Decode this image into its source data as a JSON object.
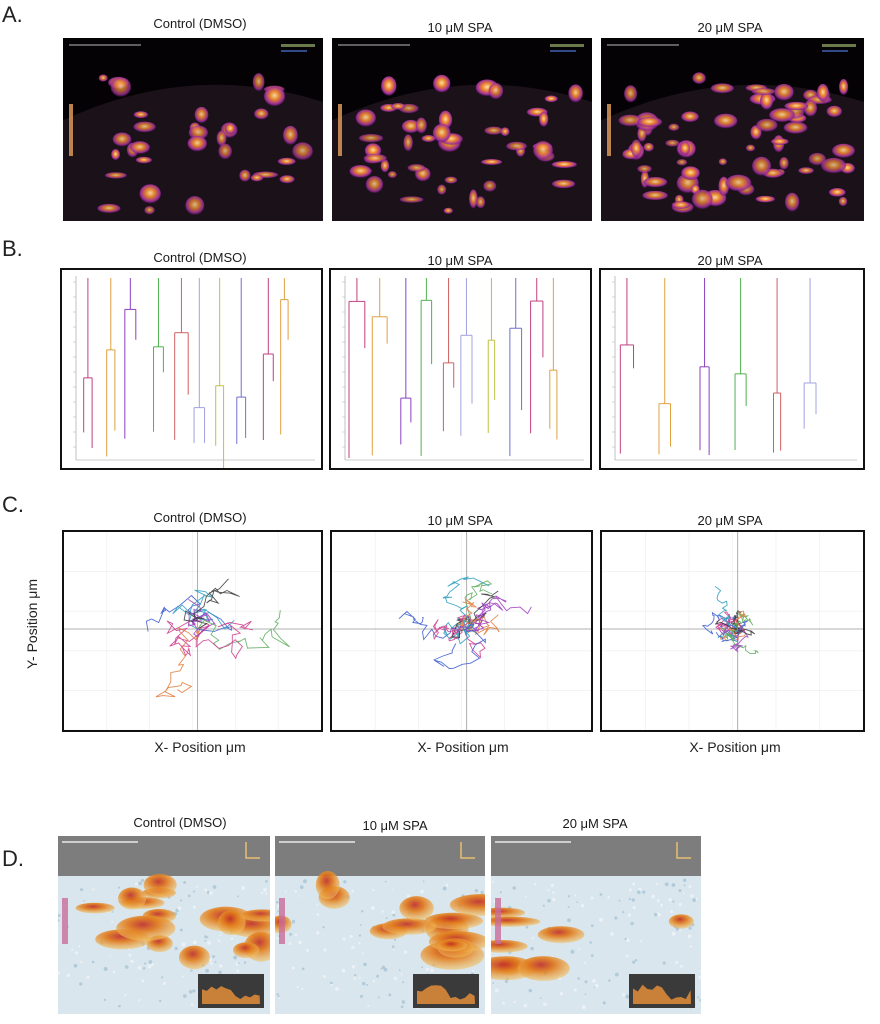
{
  "panels": {
    "A": {
      "label": "A.",
      "titles": [
        "Control (DMSO)",
        "10 μM SPA",
        "20 μM SPA"
      ]
    },
    "B": {
      "label": "B.",
      "titles": [
        "Control (DMSO)",
        "10 μM SPA",
        "20 μM SPA"
      ]
    },
    "C": {
      "label": "C.",
      "titles": [
        "Control (DMSO)",
        "10 μM SPA",
        "20 μM SPA"
      ],
      "ylabel": "Y- Position μm",
      "xlabel": "X- Position μm"
    },
    "D": {
      "label": "D.",
      "titles": [
        "Control (DMSO)",
        "10 μM SPA",
        "20 μM SPA"
      ]
    }
  },
  "colors": {
    "hot": "#f2a13a",
    "magenta": "#b030b0",
    "dark": "#0d0508",
    "surface_low": "#d6e4ec",
    "surface_high": "#e07a1c"
  }
}
